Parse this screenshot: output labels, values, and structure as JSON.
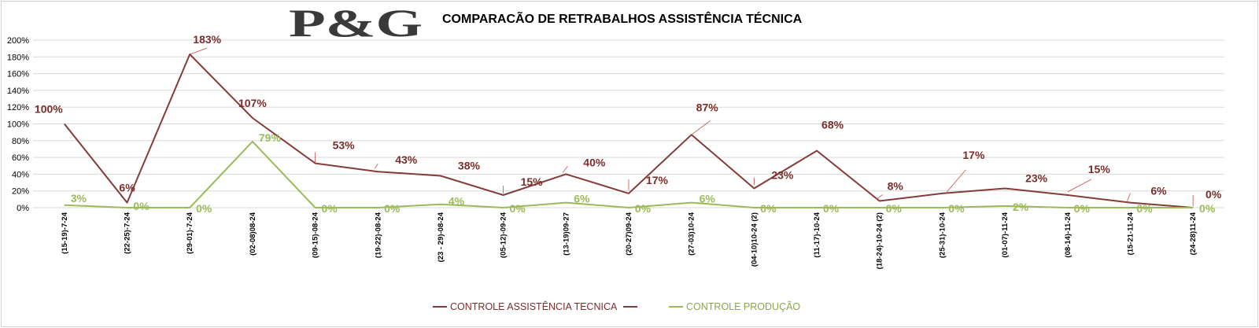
{
  "logo_text": "P&G",
  "chart_data": {
    "type": "line",
    "title": "COMPARACÃO DE RETRABALHOS  ASSISTÊNCIA TÉCNICA",
    "categories": [
      "(15-19)-7-24",
      "(22-25)-7-24",
      "(29-01)-7-24",
      "(02-08)08-24",
      "(09-15)-08-24",
      "(19-22)-08-24",
      "(23 - 29)-08-24",
      "(05-12)-09-24",
      "(13-19)09-27",
      "(20-27)09-24",
      "(27-03)10-24",
      "(04-10)10-24 (2)",
      "(11-17)-10-24",
      "(18-24)-10-24 (2)",
      "(25-31)-10-24",
      "(01-07)-11-24",
      "(08-14)-11-24",
      "(15-21-11-24",
      "(24-28)11-24"
    ],
    "yticks": [
      "0%",
      "20%",
      "40%",
      "60%",
      "80%",
      "100%",
      "120%",
      "140%",
      "160%",
      "180%",
      "200%"
    ],
    "ylim": [
      0,
      200
    ],
    "series": [
      {
        "name": "CONTROLE ASSISTÊNCIA TECNICA",
        "color": "#843c39",
        "values": [
          100,
          6,
          183,
          107,
          53,
          43,
          38,
          15,
          40,
          17,
          87,
          23,
          68,
          8,
          17,
          23,
          15,
          6,
          0
        ],
        "labels": [
          "100%",
          "6%",
          "183%",
          "107%",
          "53%",
          "43%",
          "38%",
          "15%",
          "40%",
          "17%",
          "87%",
          "23%",
          "68%",
          "8%",
          "17%",
          "23%",
          "15%",
          "6%",
          "0%"
        ]
      },
      {
        "name": "CONTROLE PRODUÇÃO",
        "color": "#9bbb59",
        "values": [
          3,
          0,
          0,
          79,
          0,
          0,
          4,
          0,
          6,
          0,
          6,
          0,
          0,
          0,
          0,
          2,
          0,
          0,
          0
        ],
        "labels": [
          "3%",
          "0%",
          "0%",
          "79%",
          "0%",
          "0%",
          "4%",
          "0%",
          "6%",
          "0%",
          "6%",
          "0%",
          "0%",
          "0%",
          "0%",
          "2%",
          "0%",
          "0%",
          "0%"
        ]
      }
    ],
    "legend": {
      "position": "bottom",
      "items": [
        "CONTROLE ASSISTÊNCIA TECNICA",
        "",
        "CONTROLE PRODUÇÃO"
      ]
    },
    "grid": true
  }
}
